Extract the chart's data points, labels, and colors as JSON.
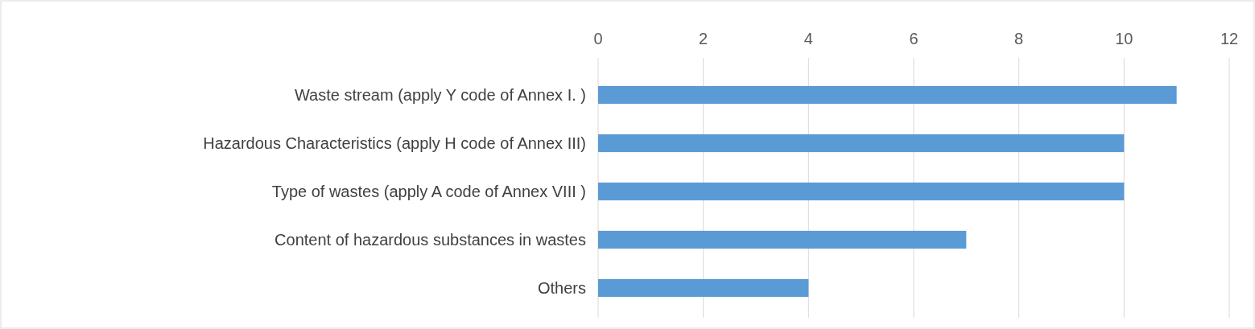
{
  "chart_data": {
    "type": "bar",
    "orientation": "horizontal",
    "categories": [
      "Waste stream (apply Y code of Annex I. )",
      "Hazardous Characteristics (apply H code of Annex III)",
      "Type of wastes (apply A code of Annex VIII )",
      "Content of hazardous substances in wastes",
      "Others"
    ],
    "values": [
      11,
      10,
      10,
      7,
      4
    ],
    "color": "#5b9bd5",
    "xlim": [
      0,
      12
    ],
    "xticks": [
      0,
      2,
      4,
      6,
      8,
      10,
      12
    ],
    "grid": "x"
  }
}
